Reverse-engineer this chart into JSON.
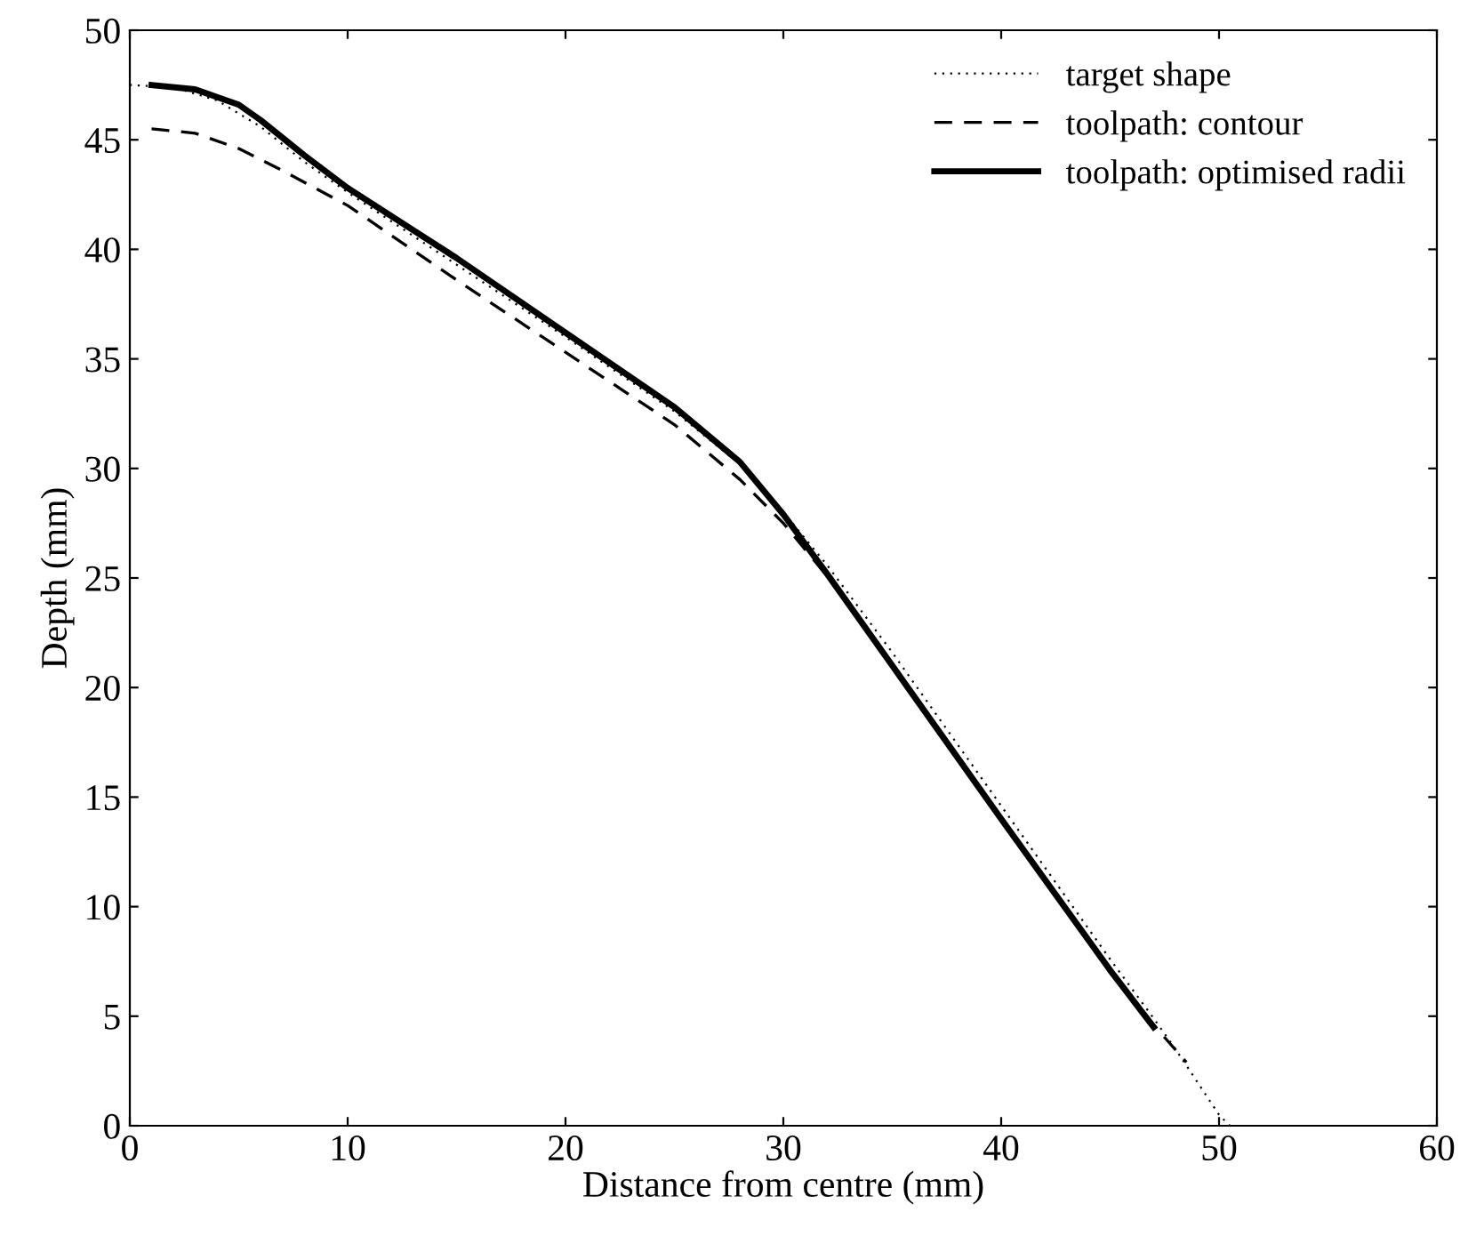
{
  "chart_data": {
    "type": "line",
    "xlabel": "Distance from centre (mm)",
    "ylabel": "Depth (mm)",
    "xlim": [
      0,
      60
    ],
    "ylim": [
      0,
      50
    ],
    "xticks": [
      0,
      10,
      20,
      30,
      40,
      50,
      60
    ],
    "yticks": [
      0,
      5,
      10,
      15,
      20,
      25,
      30,
      35,
      40,
      45,
      50
    ],
    "grid": false,
    "legend": "top right",
    "series": [
      {
        "name": "target shape",
        "color": "#000000",
        "line_style": "dotted",
        "x": [
          0,
          2,
          4,
          6,
          8,
          10,
          15,
          20,
          25,
          28,
          30,
          32,
          35,
          40,
          45,
          47,
          48,
          50,
          50.5
        ],
        "values": [
          47.5,
          47.4,
          46.8,
          45.6,
          44.0,
          42.6,
          39.3,
          36.0,
          32.6,
          30.2,
          28.0,
          25.6,
          21.6,
          14.6,
          7.6,
          4.9,
          3.5,
          0.5,
          0
        ]
      },
      {
        "name": "toolpath: contour",
        "color": "#000000",
        "line_style": "dashed",
        "x": [
          1,
          3,
          5,
          7,
          10,
          15,
          20,
          25,
          28,
          30,
          32,
          35,
          40,
          45,
          47,
          48.5
        ],
        "values": [
          45.5,
          45.3,
          44.6,
          43.6,
          42.0,
          38.6,
          35.3,
          32.0,
          29.5,
          27.5,
          25.1,
          21.0,
          14.0,
          7.0,
          4.6,
          2.9
        ]
      },
      {
        "name": "toolpath: optimised radii",
        "color": "#000000",
        "line_style": "solid",
        "x": [
          1,
          3,
          5,
          6,
          8,
          10,
          15,
          20,
          25,
          28,
          30,
          32,
          35,
          40,
          45,
          47
        ],
        "values": [
          47.5,
          47.3,
          46.6,
          45.9,
          44.3,
          42.8,
          39.6,
          36.2,
          32.8,
          30.3,
          27.9,
          25.2,
          21.0,
          14.0,
          7.1,
          4.5
        ]
      }
    ]
  }
}
